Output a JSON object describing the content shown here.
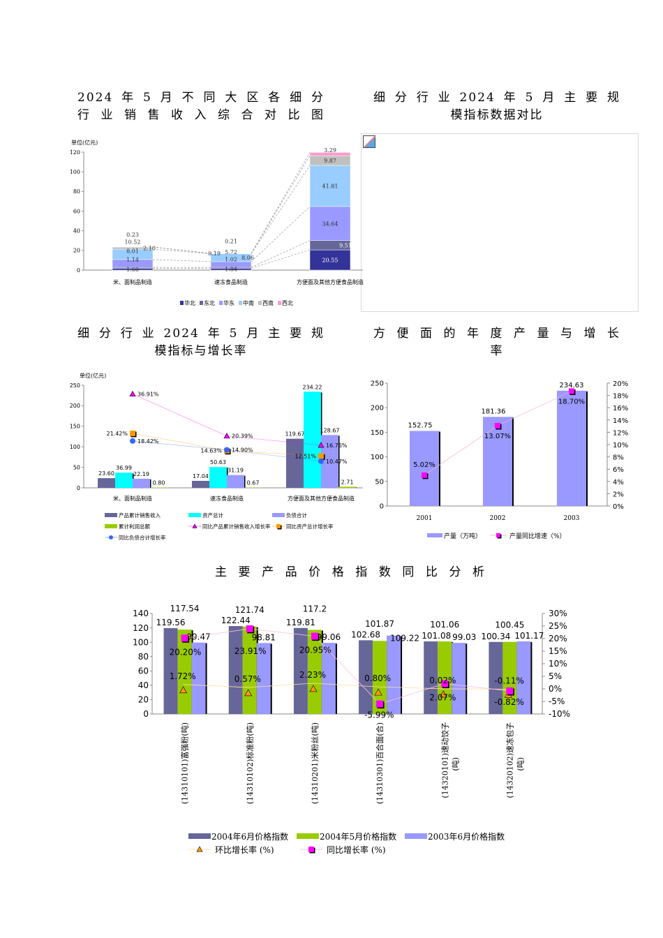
{
  "titles": {
    "t1": [
      "2024年5月不同大区各细分",
      "行业销售收入综合对比图"
    ],
    "t2": [
      "细分行业2024年5月主要规",
      "模指标数据对比"
    ],
    "t3": [
      "细分行业2024年5月主要规",
      "模指标与增长率"
    ],
    "t4": [
      "方便面的年度产量与增长",
      "率"
    ],
    "t5": "主要产品价格指数同比分析"
  },
  "broken_image": {
    "icon": "broken-image-icon"
  },
  "chart_data": [
    {
      "type": "bar",
      "stacked": true,
      "unit": "单位(亿元)",
      "categories": [
        "米、面制品制造",
        "速冻食品制造",
        "方便面及其他方便食品制造"
      ],
      "ylim": [
        0,
        120
      ],
      "yticks": [
        0,
        20,
        40,
        60,
        80,
        100,
        120
      ],
      "legend": "bottom",
      "series": [
        {
          "name": "华北",
          "color": "#333399",
          "values": [
            1.6,
            1.84,
            20.55
          ]
        },
        {
          "name": "东北",
          "color": "#666699",
          "values": [
            1.14,
            1.02,
            9.51
          ]
        },
        {
          "name": "华东",
          "color": "#9999ff",
          "values": [
            8.01,
            5.72,
            34.64
          ]
        },
        {
          "name": "中南",
          "color": "#99ccff",
          "values": [
            10.52,
            8.06,
            41.81
          ]
        },
        {
          "name": "西南",
          "color": "#c0c0c0",
          "values": [
            2.1,
            0.21,
            9.87
          ]
        },
        {
          "name": "西北",
          "color": "#ff99cc",
          "values": [
            0.23,
            0.19,
            3.29
          ]
        }
      ]
    },
    {
      "type": "bar",
      "unit": "单位(亿元)",
      "categories": [
        "米、面制品制造",
        "速冻食品制造",
        "方便面及其他方便食品制造"
      ],
      "ylim": [
        0,
        250
      ],
      "yticks": [
        0,
        50,
        100,
        150,
        200,
        250
      ],
      "legend": "bottom",
      "series": [
        {
          "name": "产品累计销售收入",
          "color": "#666699",
          "values": [
            23.6,
            17.04,
            119.67
          ]
        },
        {
          "name": "资产总计",
          "color": "#00ffff",
          "values": [
            36.99,
            50.63,
            234.22
          ]
        },
        {
          "name": "负债合计",
          "color": "#9999ff",
          "values": [
            22.19,
            31.19,
            128.67
          ]
        },
        {
          "name": "累计利润总额",
          "color": "#99cc00",
          "values": [
            0.8,
            0.67,
            2.71
          ]
        }
      ],
      "line_series": [
        {
          "name": "同比产品累计销售收入增长率",
          "color": "#ff00ff",
          "marker": "triangle",
          "values": [
            36.91,
            20.39,
            16.76
          ],
          "labels": [
            "36.91%",
            "20.39%",
            "16.76%"
          ]
        },
        {
          "name": "同比资产总计增长率",
          "color": "#ff9900",
          "marker": "square",
          "values": [
            21.42,
            14.63,
            12.51
          ],
          "labels": [
            "21.42%",
            "14.63%",
            "12.51%"
          ]
        },
        {
          "name": "同比负债合计增长率",
          "color": "#3366ff",
          "marker": "circle",
          "values": [
            18.42,
            14.9,
            10.47
          ],
          "labels": [
            "18.42%",
            "14.90%",
            "10.47%"
          ]
        }
      ]
    },
    {
      "type": "bar",
      "categories": [
        "2001",
        "2002",
        "2003"
      ],
      "ylim": [
        0,
        250
      ],
      "yticks": [
        0,
        50,
        100,
        150,
        200,
        250
      ],
      "y2lim": [
        0,
        20
      ],
      "y2ticks": [
        "0%",
        "2%",
        "4%",
        "6%",
        "8%",
        "10%",
        "12%",
        "14%",
        "16%",
        "18%",
        "20%"
      ],
      "legend": "bottom",
      "series": [
        {
          "name": "产量（万吨）",
          "color": "#9999ff",
          "values": [
            152.75,
            181.36,
            234.63
          ],
          "labels": [
            "152.75",
            "181.36",
            "234.63"
          ]
        }
      ],
      "line_series": [
        {
          "name": "产量同比增速（%）",
          "color": "#ff00ff",
          "marker": "square",
          "values": [
            5.02,
            13.07,
            18.7
          ],
          "labels": [
            "5.02%",
            "13.07%",
            "18.70%"
          ]
        }
      ]
    },
    {
      "type": "bar",
      "categories": [
        "(14310101)富强粉(吨)",
        "(14310102)标准粉(吨)",
        "(14310201)米粉丝(吨)",
        "(14310301)百合面(合)",
        "(14320101)速动饺子\n(吨)",
        "(14320102)速冻包子\n(吨)"
      ],
      "ylim": [
        0,
        140
      ],
      "yticks": [
        0,
        20,
        40,
        60,
        80,
        100,
        120,
        140
      ],
      "y2lim": [
        -10,
        30
      ],
      "y2ticks": [
        "-10%",
        "-5%",
        "0%",
        "5%",
        "10%",
        "15%",
        "20%",
        "25%",
        "30%"
      ],
      "legend": "bottom",
      "series": [
        {
          "name": "2004年6月价格指数",
          "color": "#666699",
          "values": [
            119.56,
            122.44,
            119.81,
            102.68,
            101.08,
            100.34
          ]
        },
        {
          "name": "2004年5月价格指数",
          "color": "#99cc00",
          "values": [
            117.54,
            121.74,
            117.2,
            101.87,
            101.06,
            100.45
          ]
        },
        {
          "name": "2003年6月价格指数",
          "color": "#9999ff",
          "values": [
            99.47,
            98.81,
            99.06,
            109.22,
            99.03,
            101.17
          ]
        }
      ],
      "line_series": [
        {
          "name": "环比增长率 (%)",
          "color": "#ff9900",
          "marker": "triangle",
          "values": [
            1.72,
            0.57,
            2.23,
            0.8,
            0.02,
            -0.11
          ],
          "labels": [
            "1.72%",
            "0.57%",
            "2.23%",
            "0.80%",
            "0.02%",
            "-0.11%"
          ]
        },
        {
          "name": "同比增长率 (%)",
          "color": "#ff00ff",
          "marker": "square",
          "values": [
            20.2,
            23.91,
            20.95,
            -5.99,
            2.07,
            -0.82
          ],
          "labels": [
            "20.20%",
            "23.91%",
            "20.95%",
            "-5.99%",
            "2.07%",
            "-0.82%"
          ]
        }
      ]
    }
  ]
}
